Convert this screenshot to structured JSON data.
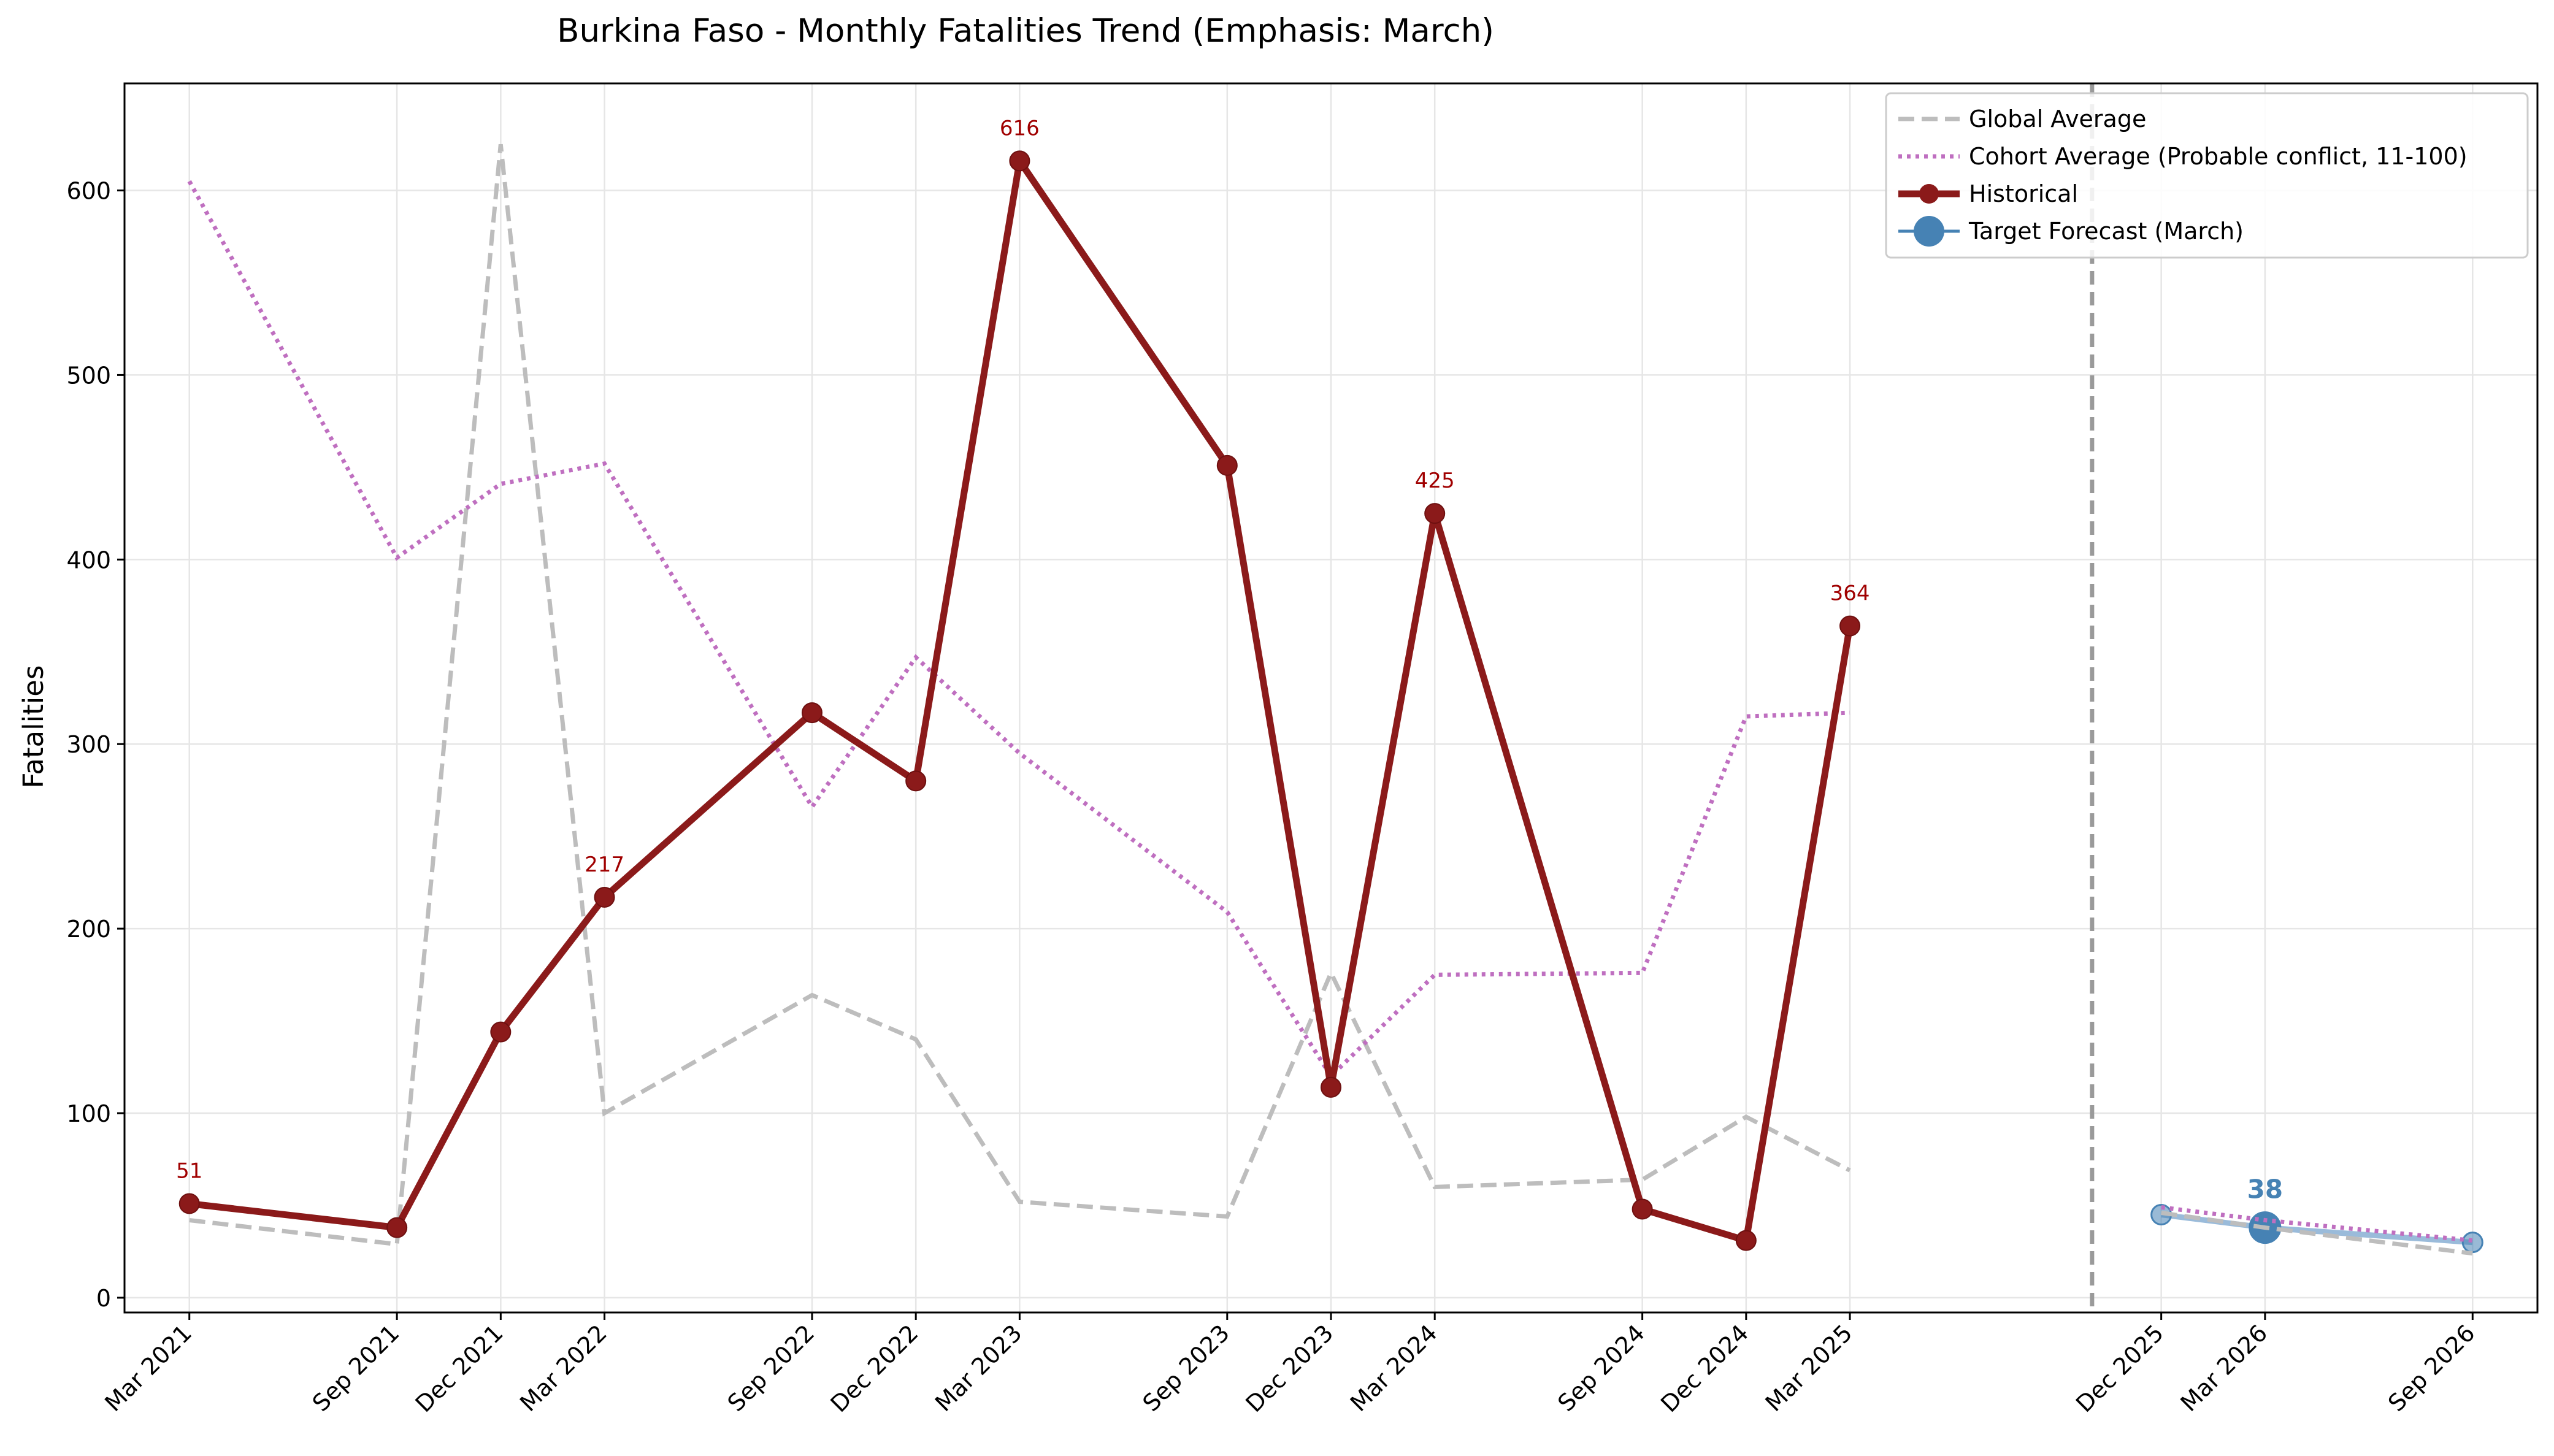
{
  "chart_data": {
    "type": "line",
    "title": "Burkina Faso - Monthly Fatalities Trend (Emphasis: March)",
    "ylabel": "Fatalities",
    "xlabel": "",
    "ylim": [
      -8,
      658
    ],
    "y_ticks": [
      0,
      100,
      200,
      300,
      400,
      500,
      600
    ],
    "grid": true,
    "legend_position": "top-right",
    "x_tick_labels": [
      "Mar 2021",
      "Sep 2021",
      "Dec 2021",
      "Mar 2022",
      "Sep 2022",
      "Dec 2022",
      "Mar 2023",
      "Sep 2023",
      "Dec 2023",
      "Mar 2024",
      "Sep 2024",
      "Dec 2024",
      "Mar 2025",
      "Dec 2025",
      "Mar 2026",
      "Sep 2026"
    ],
    "forecast_divider": "Oct 2025",
    "series": [
      {
        "name": "Global Average",
        "style": "dashed",
        "color": "#bdbdbd",
        "x": [
          "Mar 2021",
          "Sep 2021",
          "Dec 2021",
          "Mar 2022",
          "Sep 2022",
          "Dec 2022",
          "Mar 2023",
          "Sep 2023",
          "Dec 2023",
          "Mar 2024",
          "Sep 2024",
          "Dec 2024",
          "Mar 2025"
        ],
        "values": [
          42,
          29,
          625,
          100,
          164,
          140,
          52,
          44,
          176,
          60,
          64,
          98,
          69
        ]
      },
      {
        "name": "Cohort Average (Probable conflict, 11-100)",
        "style": "dotted",
        "color": "#bf6fc0",
        "x": [
          "Mar 2021",
          "Sep 2021",
          "Dec 2021",
          "Mar 2022",
          "Sep 2022",
          "Dec 2022",
          "Mar 2023",
          "Sep 2023",
          "Dec 2023",
          "Mar 2024",
          "Sep 2024",
          "Dec 2024",
          "Mar 2025"
        ],
        "values": [
          605,
          401,
          441,
          452,
          266,
          347,
          295,
          209,
          120,
          175,
          176,
          315,
          317
        ]
      },
      {
        "name": "Historical",
        "style": "solid-markers",
        "color": "#8b1a1a",
        "x": [
          "Mar 2021",
          "Sep 2021",
          "Dec 2021",
          "Mar 2022",
          "Sep 2022",
          "Dec 2022",
          "Mar 2023",
          "Sep 2023",
          "Dec 2023",
          "Mar 2024",
          "Sep 2024",
          "Dec 2024",
          "Mar 2025"
        ],
        "values": [
          51,
          38,
          144,
          217,
          317,
          280,
          616,
          451,
          114,
          425,
          48,
          31,
          364
        ],
        "labeled_points": [
          "Mar 2021",
          "Mar 2022",
          "Mar 2023",
          "Mar 2024",
          "Mar 2025"
        ]
      },
      {
        "name": "Target Forecast (March)",
        "style": "forecast",
        "color": "#4682b4",
        "x": [
          "Dec 2025",
          "Mar 2026",
          "Sep 2026"
        ],
        "values": [
          45,
          38,
          30
        ],
        "highlight": "Mar 2026"
      },
      {
        "style": "dashed",
        "color": "#bdbdbd",
        "x": [
          "Dec 2025",
          "Mar 2026",
          "Sep 2026"
        ],
        "values": [
          46,
          38,
          24
        ]
      },
      {
        "style": "dotted",
        "color": "#bf6fc0",
        "x": [
          "Dec 2025",
          "Mar 2026",
          "Sep 2026"
        ],
        "values": [
          49,
          42,
          31
        ]
      }
    ],
    "annotations": [
      {
        "x": "Mar 2021",
        "text": "51"
      },
      {
        "x": "Mar 2022",
        "text": "217"
      },
      {
        "x": "Mar 2023",
        "text": "616"
      },
      {
        "x": "Mar 2024",
        "text": "425"
      },
      {
        "x": "Mar 2025",
        "text": "364"
      },
      {
        "x": "Mar 2026",
        "text": "38"
      }
    ],
    "legend": [
      "Global Average",
      "Cohort Average (Probable conflict, 11-100)",
      "Historical",
      "Target Forecast (March)"
    ]
  }
}
